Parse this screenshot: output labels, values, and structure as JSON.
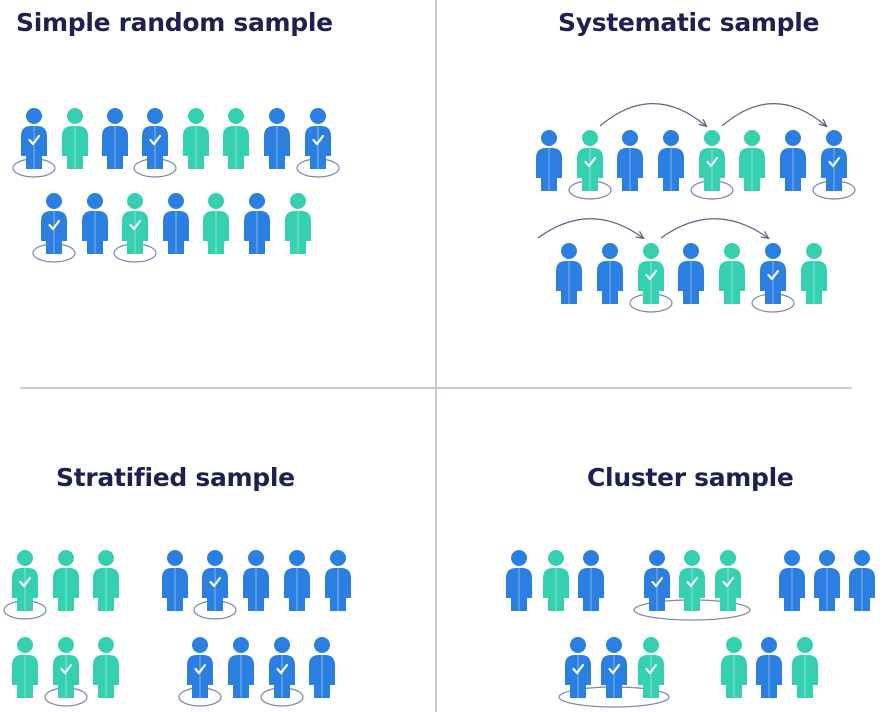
{
  "titles": {
    "simple": "Simple random sample",
    "systematic": "Systematic sample",
    "stratified": "Stratified sample",
    "cluster": "Cluster sample"
  },
  "colors": {
    "blue": "#2b7fe0",
    "teal": "#35d0b0",
    "divider": "#b5bccb",
    "ellipse": "#7a86ac",
    "arrow": "#5a6480",
    "title": "#1c2152"
  },
  "icons": {
    "person": "person-icon",
    "check": "check-icon",
    "arrow": "arrow-icon"
  },
  "panels": {
    "simple_random": {
      "groups": [
        {
          "people": [
            {
              "c": "blue",
              "sel": true
            },
            {
              "c": "teal",
              "sel": false
            },
            {
              "c": "blue",
              "sel": false
            },
            {
              "c": "blue",
              "sel": true
            },
            {
              "c": "teal",
              "sel": false
            },
            {
              "c": "teal",
              "sel": false
            },
            {
              "c": "blue",
              "sel": false
            },
            {
              "c": "blue",
              "sel": true
            }
          ]
        },
        {
          "people": [
            {
              "c": "blue",
              "sel": true
            },
            {
              "c": "blue",
              "sel": false
            },
            {
              "c": "teal",
              "sel": true
            },
            {
              "c": "blue",
              "sel": false
            },
            {
              "c": "teal",
              "sel": false
            },
            {
              "c": "blue",
              "sel": false
            },
            {
              "c": "teal",
              "sel": false
            }
          ]
        }
      ]
    },
    "systematic": {
      "groups": [
        {
          "people": [
            {
              "c": "blue",
              "sel": false
            },
            {
              "c": "teal",
              "sel": true
            },
            {
              "c": "blue",
              "sel": false
            },
            {
              "c": "blue",
              "sel": false
            },
            {
              "c": "teal",
              "sel": true
            },
            {
              "c": "teal",
              "sel": false
            },
            {
              "c": "blue",
              "sel": false
            },
            {
              "c": "blue",
              "sel": true
            }
          ]
        },
        {
          "people": [
            {
              "c": "blue",
              "sel": false
            },
            {
              "c": "blue",
              "sel": false
            },
            {
              "c": "teal",
              "sel": true
            },
            {
              "c": "blue",
              "sel": false
            },
            {
              "c": "teal",
              "sel": false
            },
            {
              "c": "blue",
              "sel": true
            },
            {
              "c": "teal",
              "sel": false
            }
          ]
        }
      ]
    },
    "stratified": {
      "groups": [
        {
          "people": [
            {
              "c": "teal",
              "sel": true
            },
            {
              "c": "teal",
              "sel": false
            },
            {
              "c": "teal",
              "sel": false
            }
          ]
        },
        {
          "people": [
            {
              "c": "blue",
              "sel": false
            },
            {
              "c": "blue",
              "sel": true
            },
            {
              "c": "blue",
              "sel": false
            },
            {
              "c": "blue",
              "sel": false
            },
            {
              "c": "blue",
              "sel": false
            }
          ]
        },
        {
          "people": [
            {
              "c": "teal",
              "sel": false
            },
            {
              "c": "teal",
              "sel": true
            },
            {
              "c": "teal",
              "sel": false
            }
          ]
        },
        {
          "people": [
            {
              "c": "blue",
              "sel": true
            },
            {
              "c": "blue",
              "sel": false
            },
            {
              "c": "blue",
              "sel": true
            },
            {
              "c": "blue",
              "sel": false
            }
          ]
        }
      ]
    },
    "cluster": {
      "groups": [
        {
          "people": [
            {
              "c": "blue",
              "sel": false
            },
            {
              "c": "teal",
              "sel": false
            },
            {
              "c": "blue",
              "sel": false
            }
          ],
          "cluster_selected": false
        },
        {
          "people": [
            {
              "c": "blue",
              "sel": true
            },
            {
              "c": "teal",
              "sel": true
            },
            {
              "c": "teal",
              "sel": true
            }
          ],
          "cluster_selected": true
        },
        {
          "people": [
            {
              "c": "blue",
              "sel": false
            },
            {
              "c": "blue",
              "sel": false
            },
            {
              "c": "blue",
              "sel": false
            }
          ],
          "cluster_selected": false
        },
        {
          "people": [
            {
              "c": "blue",
              "sel": true
            },
            {
              "c": "blue",
              "sel": true
            },
            {
              "c": "teal",
              "sel": true
            }
          ],
          "cluster_selected": true
        },
        {
          "people": [
            {
              "c": "teal",
              "sel": false
            },
            {
              "c": "blue",
              "sel": false
            },
            {
              "c": "teal",
              "sel": false
            }
          ],
          "cluster_selected": false
        }
      ]
    }
  }
}
